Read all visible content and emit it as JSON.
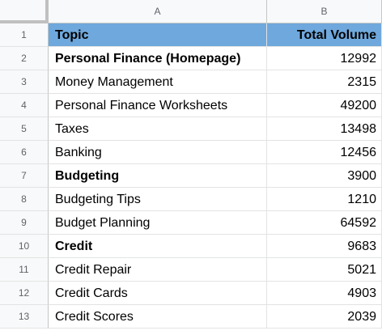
{
  "columns": [
    "A",
    "B"
  ],
  "header": {
    "topic": "Topic",
    "volume": "Total Volume",
    "row_number": "1"
  },
  "rows": [
    {
      "num": "2",
      "topic": "Personal Finance (Homepage)",
      "volume": "12992",
      "bold": true
    },
    {
      "num": "3",
      "topic": "Money Management",
      "volume": "2315",
      "bold": false
    },
    {
      "num": "4",
      "topic": "Personal Finance Worksheets",
      "volume": "49200",
      "bold": false
    },
    {
      "num": "5",
      "topic": "Taxes",
      "volume": "13498",
      "bold": false
    },
    {
      "num": "6",
      "topic": "Banking",
      "volume": "12456",
      "bold": false
    },
    {
      "num": "7",
      "topic": "Budgeting",
      "volume": "3900",
      "bold": true
    },
    {
      "num": "8",
      "topic": "Budgeting Tips",
      "volume": "1210",
      "bold": false
    },
    {
      "num": "9",
      "topic": "Budget Planning",
      "volume": "64592",
      "bold": false
    },
    {
      "num": "10",
      "topic": "Credit",
      "volume": "9683",
      "bold": true
    },
    {
      "num": "11",
      "topic": "Credit Repair",
      "volume": "5021",
      "bold": false
    },
    {
      "num": "12",
      "topic": "Credit Cards",
      "volume": "4903",
      "bold": false
    },
    {
      "num": "13",
      "topic": "Credit Scores",
      "volume": "2039",
      "bold": false
    }
  ],
  "colors": {
    "header_fill": "#6fa8dc",
    "gridline": "#e2e3e3",
    "header_bg": "#f8f9fa"
  }
}
